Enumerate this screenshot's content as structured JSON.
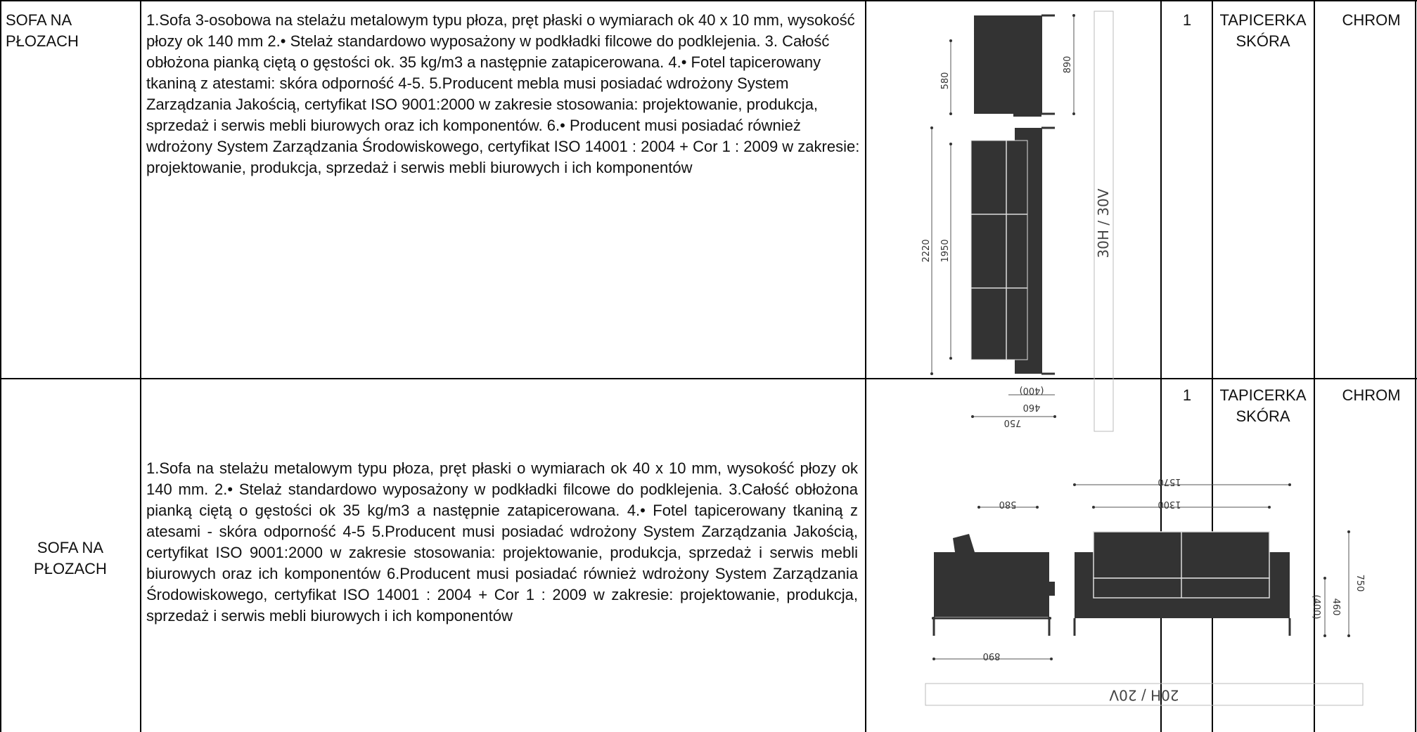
{
  "rows": [
    {
      "name": "SOFA NA PŁOZACH",
      "description": "1.Sofa  3-osobowa na stelażu metalowym typu płoza, pręt płaski o wymiarach ok 40 x 10 mm, wysokość płozy ok 140 mm 2.• Stelaż standardowo wyposażony w podkładki filcowe do podklejenia. 3. Całość obłożona pianką ciętą o gęstości ok. 35 kg/m3 a następnie zatapicerowana. 4.• Fotel tapicerowany tkaniną z atestami: skóra odporność 4-5. 5.Producent mebla musi posiadać wdrożony System Zarządzania Jakością, certyfikat ISO 9001:2000 w zakresie stosowania: projektowanie, produkcja, sprzedaż i serwis mebli biurowych oraz ich komponentów. 6.• Producent musi posiadać również wdrożony System Zarządzania Środowiskowego, certyfikat ISO 14001 : 2004 + Cor 1 : 2009 w zakresie: projektowanie, produkcja, sprzedaż i serwis mebli biurowych i ich komponentów",
      "quantity": "1",
      "material": "TAPICERKA SKÓRA",
      "finish": "CHROM",
      "drawing": {
        "dim_side_height": "580",
        "dim_total_height": "890",
        "dim_length_total": "2220",
        "dim_length_seat": "1950",
        "box_label": "30H / 30V",
        "dim_depth_a": "(400)",
        "dim_depth_b": "460",
        "dim_depth_c": "750"
      }
    },
    {
      "name": "SOFA NA PŁOZACH",
      "description": "1.Sofa na stelażu metalowym typu płoza, pręt płaski o wymiarach ok 40 x 10 mm, wysokość płozy ok 140 mm.  2.• Stelaż standardowo wyposażony w podkładki filcowe do podklejenia. 3.Całość obłożona pianką ciętą o gęstości ok 35 kg/m3 a następnie zatapicerowana. 4.• Fotel tapicerowany tkaniną z atesami - skóra odporność 4-5 5.Producent musi posiadać wdrożony System Zarządzania Jakością, certyfikat ISO 9001:2000 w zakresie stosowania: projektowanie, produkcja, sprzedaż i serwis mebli biurowych oraz ich komponentów 6.Producent musi posiadać  również wdrożony System Zarządzania Środowiskowego, certyfikat ISO 14001 : 2004 + Cor 1 : 2009 w zakresie: projektowanie, produkcja, sprzedaż i serwis mebli biurowych i ich komponentów",
      "quantity": "1",
      "material": "TAPICERKA SKÓRA",
      "finish": "CHROM",
      "drawing": {
        "dim_width_total": "1570",
        "dim_width_seat": "1300",
        "dim_side_depth": "580",
        "dim_side_width": "890",
        "dim_height_a": "(400)",
        "dim_height_b": "460",
        "dim_height_c": "750",
        "box_label": "20H / 20V"
      }
    }
  ]
}
